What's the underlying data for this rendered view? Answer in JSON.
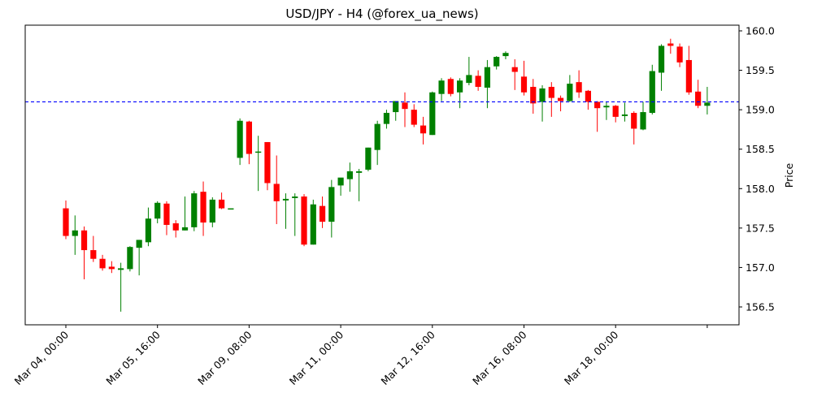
{
  "chart_data": {
    "type": "candlestick",
    "title": "USD/JPY - H4 (@forex_ua_news)",
    "xlabel": "",
    "ylabel": "Price",
    "ylim": [
      156.28,
      160.08
    ],
    "y_ticks": [
      "156.5",
      "157.0",
      "157.5",
      "158.0",
      "158.5",
      "159.0",
      "159.5",
      "160.0"
    ],
    "x_ticks": [
      "Mar 04, 00:00",
      "Mar 05, 16:00",
      "Mar 09, 08:00",
      "Mar 11, 00:00",
      "Mar 12, 16:00",
      "Mar 16, 08:00",
      "Mar 18, 00:00",
      ""
    ],
    "x_tick_index": [
      0,
      10,
      20,
      30,
      40,
      50,
      60,
      70
    ],
    "hline": {
      "value": 159.1,
      "color": "#0000ff",
      "style": "dashed"
    },
    "up_color": "#008000",
    "down_color": "#ff0000",
    "grid": false,
    "candles": [
      {
        "o": 157.75,
        "h": 157.85,
        "l": 157.36,
        "c": 157.4
      },
      {
        "o": 157.4,
        "h": 157.66,
        "l": 157.16,
        "c": 157.47
      },
      {
        "o": 157.47,
        "h": 157.52,
        "l": 156.85,
        "c": 157.22
      },
      {
        "o": 157.22,
        "h": 157.4,
        "l": 157.07,
        "c": 157.11
      },
      {
        "o": 157.11,
        "h": 157.16,
        "l": 156.96,
        "c": 156.99
      },
      {
        "o": 157.01,
        "h": 157.08,
        "l": 156.93,
        "c": 156.98
      },
      {
        "o": 156.97,
        "h": 157.06,
        "l": 156.44,
        "c": 156.99
      },
      {
        "o": 156.98,
        "h": 157.27,
        "l": 156.95,
        "c": 157.26
      },
      {
        "o": 157.25,
        "h": 157.35,
        "l": 156.9,
        "c": 157.35
      },
      {
        "o": 157.32,
        "h": 157.76,
        "l": 157.27,
        "c": 157.62
      },
      {
        "o": 157.62,
        "h": 157.84,
        "l": 157.56,
        "c": 157.82
      },
      {
        "o": 157.81,
        "h": 157.84,
        "l": 157.41,
        "c": 157.54
      },
      {
        "o": 157.56,
        "h": 157.6,
        "l": 157.38,
        "c": 157.47
      },
      {
        "o": 157.47,
        "h": 157.9,
        "l": 157.47,
        "c": 157.51
      },
      {
        "o": 157.51,
        "h": 157.97,
        "l": 157.46,
        "c": 157.94
      },
      {
        "o": 157.96,
        "h": 158.09,
        "l": 157.4,
        "c": 157.57
      },
      {
        "o": 157.57,
        "h": 157.89,
        "l": 157.51,
        "c": 157.86
      },
      {
        "o": 157.86,
        "h": 157.95,
        "l": 157.74,
        "c": 157.75
      },
      {
        "o": 157.75,
        "h": 157.75,
        "l": 157.75,
        "c": 157.75
      },
      {
        "o": 158.39,
        "h": 158.89,
        "l": 158.3,
        "c": 158.86
      },
      {
        "o": 158.85,
        "h": 158.86,
        "l": 158.31,
        "c": 158.44
      },
      {
        "o": 158.46,
        "h": 158.67,
        "l": 157.97,
        "c": 158.47
      },
      {
        "o": 158.59,
        "h": 158.59,
        "l": 157.98,
        "c": 158.07
      },
      {
        "o": 158.06,
        "h": 158.42,
        "l": 157.55,
        "c": 157.84
      },
      {
        "o": 157.85,
        "h": 157.94,
        "l": 157.49,
        "c": 157.87
      },
      {
        "o": 157.88,
        "h": 157.94,
        "l": 157.4,
        "c": 157.9
      },
      {
        "o": 157.9,
        "h": 157.93,
        "l": 157.27,
        "c": 157.29
      },
      {
        "o": 157.29,
        "h": 157.86,
        "l": 157.29,
        "c": 157.8
      },
      {
        "o": 157.78,
        "h": 157.9,
        "l": 157.5,
        "c": 157.58
      },
      {
        "o": 157.58,
        "h": 158.11,
        "l": 157.38,
        "c": 158.02
      },
      {
        "o": 158.04,
        "h": 158.12,
        "l": 157.91,
        "c": 158.14
      },
      {
        "o": 158.12,
        "h": 158.33,
        "l": 157.96,
        "c": 158.22
      },
      {
        "o": 158.2,
        "h": 158.25,
        "l": 157.84,
        "c": 158.22
      },
      {
        "o": 158.24,
        "h": 158.52,
        "l": 158.22,
        "c": 158.52
      },
      {
        "o": 158.49,
        "h": 158.86,
        "l": 158.3,
        "c": 158.82
      },
      {
        "o": 158.82,
        "h": 159.0,
        "l": 158.76,
        "c": 158.96
      },
      {
        "o": 158.97,
        "h": 159.11,
        "l": 158.86,
        "c": 159.11
      },
      {
        "o": 159.09,
        "h": 159.22,
        "l": 158.78,
        "c": 159.01
      },
      {
        "o": 159.0,
        "h": 159.07,
        "l": 158.78,
        "c": 158.81
      },
      {
        "o": 158.8,
        "h": 158.91,
        "l": 158.56,
        "c": 158.7
      },
      {
        "o": 158.68,
        "h": 159.23,
        "l": 158.68,
        "c": 159.22
      },
      {
        "o": 159.2,
        "h": 159.4,
        "l": 159.11,
        "c": 159.37
      },
      {
        "o": 159.39,
        "h": 159.41,
        "l": 159.17,
        "c": 159.2
      },
      {
        "o": 159.22,
        "h": 159.4,
        "l": 159.02,
        "c": 159.37
      },
      {
        "o": 159.34,
        "h": 159.67,
        "l": 159.31,
        "c": 159.44
      },
      {
        "o": 159.43,
        "h": 159.5,
        "l": 159.24,
        "c": 159.29
      },
      {
        "o": 159.28,
        "h": 159.63,
        "l": 159.02,
        "c": 159.54
      },
      {
        "o": 159.55,
        "h": 159.68,
        "l": 159.51,
        "c": 159.67
      },
      {
        "o": 159.68,
        "h": 159.74,
        "l": 159.64,
        "c": 159.72
      },
      {
        "o": 159.54,
        "h": 159.64,
        "l": 159.25,
        "c": 159.48
      },
      {
        "o": 159.42,
        "h": 159.62,
        "l": 159.18,
        "c": 159.22
      },
      {
        "o": 159.29,
        "h": 159.39,
        "l": 158.95,
        "c": 159.08
      },
      {
        "o": 159.1,
        "h": 159.31,
        "l": 158.85,
        "c": 159.27
      },
      {
        "o": 159.29,
        "h": 159.35,
        "l": 158.91,
        "c": 159.15
      },
      {
        "o": 159.15,
        "h": 159.18,
        "l": 158.98,
        "c": 159.11
      },
      {
        "o": 159.11,
        "h": 159.44,
        "l": 159.1,
        "c": 159.33
      },
      {
        "o": 159.35,
        "h": 159.5,
        "l": 159.15,
        "c": 159.22
      },
      {
        "o": 159.24,
        "h": 159.25,
        "l": 159.0,
        "c": 159.1
      },
      {
        "o": 159.1,
        "h": 159.11,
        "l": 158.72,
        "c": 159.02
      },
      {
        "o": 159.03,
        "h": 159.1,
        "l": 158.87,
        "c": 159.05
      },
      {
        "o": 159.05,
        "h": 159.06,
        "l": 158.84,
        "c": 158.91
      },
      {
        "o": 158.92,
        "h": 159.09,
        "l": 158.85,
        "c": 158.94
      },
      {
        "o": 158.96,
        "h": 158.98,
        "l": 158.56,
        "c": 158.76
      },
      {
        "o": 158.75,
        "h": 159.1,
        "l": 158.74,
        "c": 158.97
      },
      {
        "o": 158.96,
        "h": 159.57,
        "l": 158.94,
        "c": 159.49
      },
      {
        "o": 159.47,
        "h": 159.83,
        "l": 159.24,
        "c": 159.81
      },
      {
        "o": 159.84,
        "h": 159.9,
        "l": 159.71,
        "c": 159.81
      },
      {
        "o": 159.8,
        "h": 159.84,
        "l": 159.54,
        "c": 159.6
      },
      {
        "o": 159.63,
        "h": 159.81,
        "l": 159.19,
        "c": 159.22
      },
      {
        "o": 159.23,
        "h": 159.38,
        "l": 159.02,
        "c": 159.05
      },
      {
        "o": 159.05,
        "h": 159.29,
        "l": 158.94,
        "c": 159.09
      }
    ]
  }
}
